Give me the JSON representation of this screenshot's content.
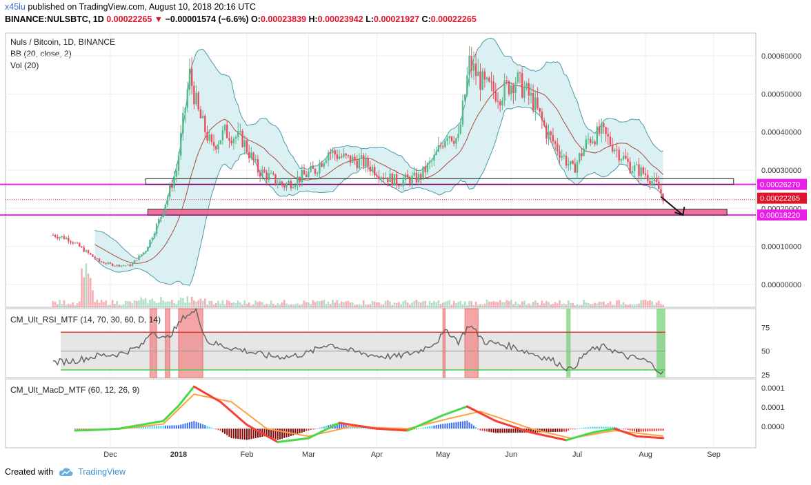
{
  "header": {
    "user": "x45lu",
    "published_text": "published on TradingView.com, August 10, 2018 20:16 UTC",
    "symbol": "BINANCE:NULSBTC, 1D",
    "last": "0.00022265",
    "change": "−0.00001574 (−6.6%)",
    "o_label": "O:",
    "o_value": "0.00023839",
    "h_label": "H:",
    "h_value": "0.00023942",
    "l_label": "L:",
    "l_value": "0.00021927",
    "c_label": "C:",
    "c_value": "0.00022265"
  },
  "footer": {
    "created_with": "Created with",
    "brand": "TradingView"
  },
  "colors": {
    "up": "#53b987",
    "down": "#eb4d5c",
    "bb_fill": "#d7eef1",
    "bb_line": "#4a9aa8",
    "magenta": "#e91ee9",
    "pink_zone": "#f06090",
    "rsi_line": "#666666",
    "rsi_upper": "#e53935",
    "rsi_lower": "#43d043",
    "macd_up": "#4ad84a",
    "macd_down": "#f44336",
    "signal": "#ffa040"
  },
  "chart_data": {
    "type": "candlestick",
    "title": "Nuls / Bitcoin, 1D, BINANCE",
    "indicators_legend": [
      "BB (20, close, 2)",
      "Vol (20)"
    ],
    "x_ticks": [
      "Dec",
      "2018",
      "Feb",
      "Mar",
      "Apr",
      "May",
      "Jun",
      "Jul",
      "Aug",
      "Sep"
    ],
    "y_ticks": [
      "0.00060000",
      "0.00050000",
      "0.00040000",
      "0.00030000",
      "0.00020000",
      "0.00010000",
      "0.00000000"
    ],
    "ylim": [
      -6e-05,
      0.00066
    ],
    "price_labels": [
      {
        "text": "0.00026270",
        "value": 0.0002627,
        "color": "#e91ee9"
      },
      {
        "text": "0.00022265",
        "value": 0.00022265,
        "color": "#e0132a"
      },
      {
        "text": "0.00018220",
        "value": 0.0001822,
        "color": "#e91ee9"
      }
    ],
    "horizontal_lines": [
      0.0002627,
      0.0001822
    ],
    "zones": [
      {
        "from": 0.0002627,
        "to": 0.0002777,
        "start": "2017-12-17",
        "end": "2018-09-10",
        "fill": "none"
      },
      {
        "from": 0.0001822,
        "to": 0.0001972,
        "start": "2017-12-18",
        "end": "2018-09-07",
        "fill": "#f06090"
      }
    ],
    "arrow": {
      "from": [
        "2018-08-08",
        0.00023
      ],
      "to": [
        "2018-08-18",
        0.000182
      ]
    },
    "price_path": [
      [
        "2017-11-05",
        0.00013
      ],
      [
        "2017-11-12",
        0.00012
      ],
      [
        "2017-11-19",
        9e-05
      ],
      [
        "2017-11-26",
        6e-05
      ],
      [
        "2017-12-03",
        5e-05
      ],
      [
        "2017-12-10",
        5e-05
      ],
      [
        "2017-12-17",
        9e-05
      ],
      [
        "2017-12-24",
        0.00018
      ],
      [
        "2017-12-31",
        0.0003
      ],
      [
        "2018-01-06",
        0.00055
      ],
      [
        "2018-01-10",
        0.00045
      ],
      [
        "2018-01-16",
        0.00036
      ],
      [
        "2018-01-22",
        0.0004
      ],
      [
        "2018-01-30",
        0.00038
      ],
      [
        "2018-02-06",
        0.0003
      ],
      [
        "2018-02-12",
        0.00028
      ],
      [
        "2018-02-18",
        0.00026
      ],
      [
        "2018-02-25",
        0.00028
      ],
      [
        "2018-03-04",
        0.0003
      ],
      [
        "2018-03-10",
        0.00035
      ],
      [
        "2018-03-18",
        0.00033
      ],
      [
        "2018-03-26",
        0.00032
      ],
      [
        "2018-04-03",
        0.00029
      ],
      [
        "2018-04-10",
        0.00027
      ],
      [
        "2018-04-20",
        0.00028
      ],
      [
        "2018-04-27",
        0.00033
      ],
      [
        "2018-05-03",
        0.0004
      ],
      [
        "2018-05-08",
        0.00038
      ],
      [
        "2018-05-13",
        0.00058
      ],
      [
        "2018-05-20",
        0.00052
      ],
      [
        "2018-05-27",
        0.0005
      ],
      [
        "2018-06-03",
        0.00054
      ],
      [
        "2018-06-11",
        0.00048
      ],
      [
        "2018-06-17",
        0.0004
      ],
      [
        "2018-06-23",
        0.00035
      ],
      [
        "2018-06-29",
        0.0003
      ],
      [
        "2018-07-06",
        0.00038
      ],
      [
        "2018-07-12",
        0.0004
      ],
      [
        "2018-07-18",
        0.00036
      ],
      [
        "2018-07-25",
        0.00031
      ],
      [
        "2018-08-01",
        0.00029
      ],
      [
        "2018-08-06",
        0.00026
      ],
      [
        "2018-08-10",
        0.00022
      ]
    ],
    "rsi": {
      "name": "CM_Ult_RSI_MTF (14, 70, 30, 60, D, 14)",
      "y_ticks": [
        75,
        50,
        25
      ],
      "upper": 70,
      "lower": 30,
      "mid": 50,
      "ylim": [
        22,
        95
      ],
      "path": [
        [
          "2017-11-05",
          38
        ],
        [
          "2017-11-15",
          40
        ],
        [
          "2017-11-25",
          45
        ],
        [
          "2017-12-05",
          47
        ],
        [
          "2017-12-15",
          55
        ],
        [
          "2017-12-20",
          72
        ],
        [
          "2017-12-26",
          62
        ],
        [
          "2017-12-31",
          75
        ],
        [
          "2018-01-04",
          88
        ],
        [
          "2018-01-09",
          92
        ],
        [
          "2018-01-14",
          60
        ],
        [
          "2018-01-22",
          55
        ],
        [
          "2018-02-01",
          50
        ],
        [
          "2018-02-10",
          45
        ],
        [
          "2018-02-20",
          44
        ],
        [
          "2018-03-01",
          48
        ],
        [
          "2018-03-10",
          58
        ],
        [
          "2018-03-20",
          50
        ],
        [
          "2018-04-01",
          45
        ],
        [
          "2018-04-10",
          44
        ],
        [
          "2018-04-20",
          50
        ],
        [
          "2018-04-28",
          60
        ],
        [
          "2018-05-03",
          72
        ],
        [
          "2018-05-08",
          60
        ],
        [
          "2018-05-13",
          78
        ],
        [
          "2018-05-20",
          60
        ],
        [
          "2018-06-01",
          55
        ],
        [
          "2018-06-10",
          48
        ],
        [
          "2018-06-20",
          40
        ],
        [
          "2018-06-28",
          30
        ],
        [
          "2018-07-06",
          50
        ],
        [
          "2018-07-14",
          55
        ],
        [
          "2018-07-22",
          45
        ],
        [
          "2018-08-01",
          40
        ],
        [
          "2018-08-06",
          32
        ],
        [
          "2018-08-10",
          24
        ]
      ],
      "overbought_spans": [
        [
          "2017-12-19",
          "2017-12-22"
        ],
        [
          "2017-12-26",
          "2017-12-28"
        ],
        [
          "2018-01-01",
          "2018-01-12"
        ],
        [
          "2018-05-01",
          "2018-05-02"
        ],
        [
          "2018-05-11",
          "2018-05-17"
        ]
      ],
      "oversold_spans": [
        [
          "2018-06-26",
          "2018-06-28"
        ],
        [
          "2018-08-06",
          "2018-08-10"
        ]
      ]
    },
    "macd": {
      "name": "CM_Ult_MacD_MTF (60, 12, 26, 9)",
      "y_ticks": [
        "0.0001",
        "0.0001",
        "0.0000"
      ],
      "macd_path": [
        [
          "2017-11-15",
          -5e-06
        ],
        [
          "2017-11-25",
          -3e-06
        ],
        [
          "2017-12-05",
          0.0
        ],
        [
          "2017-12-15",
          1e-05
        ],
        [
          "2017-12-25",
          2e-05
        ],
        [
          "2018-01-01",
          6e-05
        ],
        [
          "2018-01-08",
          0.00011
        ],
        [
          "2018-01-20",
          7e-05
        ],
        [
          "2018-02-01",
          1e-05
        ],
        [
          "2018-02-15",
          -3.5e-05
        ],
        [
          "2018-03-01",
          -2.5e-05
        ],
        [
          "2018-03-15",
          1.5e-05
        ],
        [
          "2018-04-01",
          0.0
        ],
        [
          "2018-04-15",
          -5e-06
        ],
        [
          "2018-05-01",
          3.5e-05
        ],
        [
          "2018-05-12",
          5.8e-05
        ],
        [
          "2018-05-25",
          2e-05
        ],
        [
          "2018-06-10",
          -1e-05
        ],
        [
          "2018-06-26",
          -3e-05
        ],
        [
          "2018-07-08",
          -1e-05
        ],
        [
          "2018-07-18",
          0.0
        ],
        [
          "2018-07-28",
          -2e-05
        ],
        [
          "2018-08-10",
          -2.5e-05
        ]
      ],
      "signal_path": [
        [
          "2017-11-15",
          -4e-06
        ],
        [
          "2017-12-05",
          -1e-06
        ],
        [
          "2017-12-25",
          1.2e-05
        ],
        [
          "2018-01-08",
          9e-05
        ],
        [
          "2018-01-25",
          7e-05
        ],
        [
          "2018-02-10",
          0.0
        ],
        [
          "2018-03-01",
          -2e-05
        ],
        [
          "2018-03-20",
          5e-06
        ],
        [
          "2018-04-15",
          0.0
        ],
        [
          "2018-05-05",
          2.8e-05
        ],
        [
          "2018-05-18",
          4.5e-05
        ],
        [
          "2018-06-10",
          0.0
        ],
        [
          "2018-06-28",
          -2.5e-05
        ],
        [
          "2018-07-18",
          -5e-06
        ],
        [
          "2018-08-10",
          -2e-05
        ]
      ],
      "ylim": [
        -5e-05,
        0.00013
      ]
    }
  }
}
